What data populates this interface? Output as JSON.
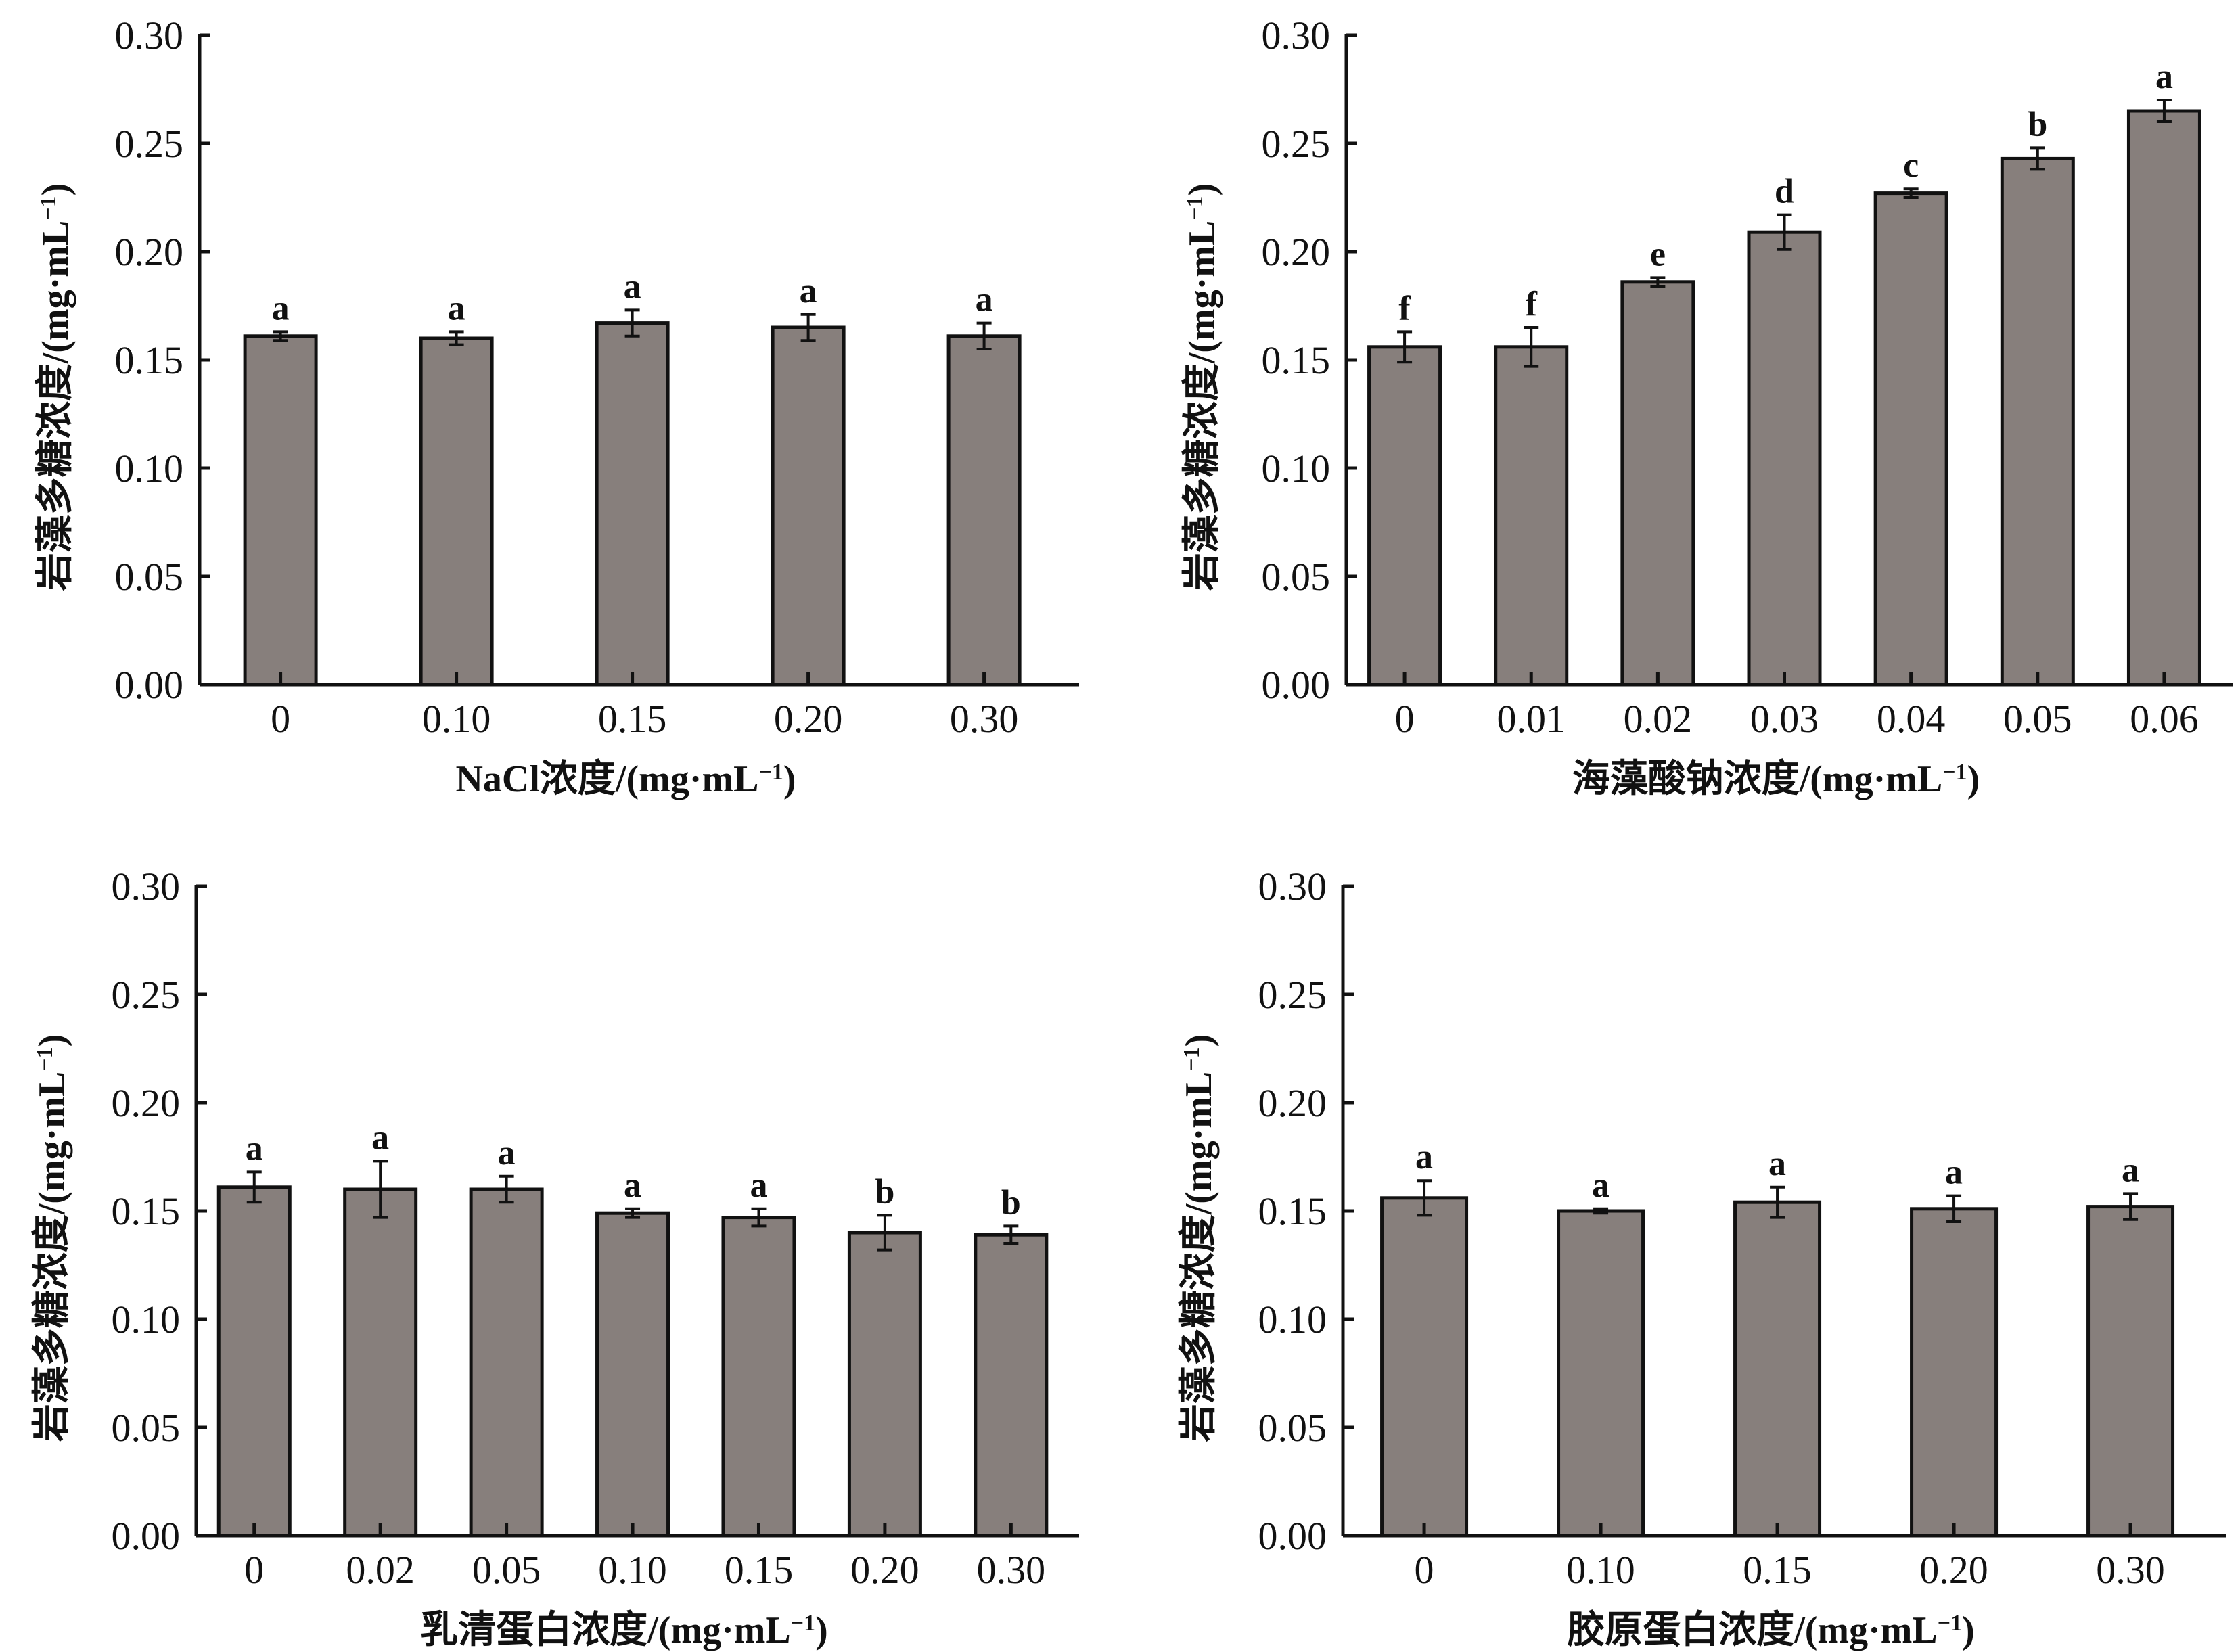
{
  "chart_data": [
    {
      "id": "nacl",
      "type": "bar",
      "title": "",
      "xlabel_prefix": "NaCl浓度/(mg·mL",
      "xlabel_sup": "−1",
      "xlabel_suffix": ")",
      "ylabel_prefix": "岩藻多糖浓度/(mg·mL",
      "ylabel_sup": "−1",
      "ylabel_suffix": ")",
      "ylim": [
        0,
        0.3
      ],
      "yticks": [
        "0.00",
        "0.05",
        "0.10",
        "0.15",
        "0.20",
        "0.25",
        "0.30"
      ],
      "grid": false,
      "categories": [
        "0",
        "0.10",
        "0.15",
        "0.20",
        "0.30"
      ],
      "values": [
        0.161,
        0.16,
        0.167,
        0.165,
        0.161
      ],
      "errors": [
        0.002,
        0.003,
        0.006,
        0.006,
        0.006
      ],
      "significance": [
        "a",
        "a",
        "a",
        "a",
        "a"
      ]
    },
    {
      "id": "sodium-alginate",
      "type": "bar",
      "title": "",
      "xlabel_prefix": "海藻酸钠浓度/(mg·mL",
      "xlabel_sup": "−1",
      "xlabel_suffix": ")",
      "ylabel_prefix": "岩藻多糖浓度/(mg·mL",
      "ylabel_sup": "−1",
      "ylabel_suffix": ")",
      "ylim": [
        0,
        0.3
      ],
      "yticks": [
        "0.00",
        "0.05",
        "0.10",
        "0.15",
        "0.20",
        "0.25",
        "0.30"
      ],
      "grid": false,
      "categories": [
        "0",
        "0.01",
        "0.02",
        "0.03",
        "0.04",
        "0.05",
        "0.06"
      ],
      "values": [
        0.156,
        0.156,
        0.186,
        0.209,
        0.227,
        0.243,
        0.265
      ],
      "errors": [
        0.007,
        0.009,
        0.002,
        0.008,
        0.002,
        0.005,
        0.005
      ],
      "significance": [
        "f",
        "f",
        "e",
        "d",
        "c",
        "b",
        "a"
      ]
    },
    {
      "id": "whey-protein",
      "type": "bar",
      "title": "",
      "xlabel_prefix": "乳清蛋白浓度/(mg·mL",
      "xlabel_sup": "−1",
      "xlabel_suffix": ")",
      "ylabel_prefix": "岩藻多糖浓度/(mg·mL",
      "ylabel_sup": "−1",
      "ylabel_suffix": ")",
      "ylim": [
        0,
        0.3
      ],
      "yticks": [
        "0.00",
        "0.05",
        "0.10",
        "0.15",
        "0.20",
        "0.25",
        "0.30"
      ],
      "grid": false,
      "categories": [
        "0",
        "0.02",
        "0.05",
        "0.10",
        "0.15",
        "0.20",
        "0.30"
      ],
      "values": [
        0.161,
        0.16,
        0.16,
        0.149,
        0.147,
        0.14,
        0.139
      ],
      "errors": [
        0.007,
        0.013,
        0.006,
        0.002,
        0.004,
        0.008,
        0.004
      ],
      "significance": [
        "a",
        "a",
        "a",
        "a",
        "a",
        "b",
        "b"
      ]
    },
    {
      "id": "collagen",
      "type": "bar",
      "title": "",
      "xlabel_prefix": "胶原蛋白浓度/(mg·mL",
      "xlabel_sup": "−1",
      "xlabel_suffix": ")",
      "ylabel_prefix": "岩藻多糖浓度/(mg·mL",
      "ylabel_sup": "−1",
      "ylabel_suffix": ")",
      "ylim": [
        0,
        0.3
      ],
      "yticks": [
        "0.00",
        "0.05",
        "0.10",
        "0.15",
        "0.20",
        "0.25",
        "0.30"
      ],
      "grid": false,
      "categories": [
        "0",
        "0.10",
        "0.15",
        "0.20",
        "0.30"
      ],
      "values": [
        0.156,
        0.15,
        0.154,
        0.151,
        0.152
      ],
      "errors": [
        0.008,
        0.001,
        0.007,
        0.006,
        0.006
      ],
      "significance": [
        "a",
        "a",
        "a",
        "a",
        "a"
      ]
    }
  ],
  "style": {
    "bar_fill": "#877f7c",
    "outline": "#111111"
  }
}
